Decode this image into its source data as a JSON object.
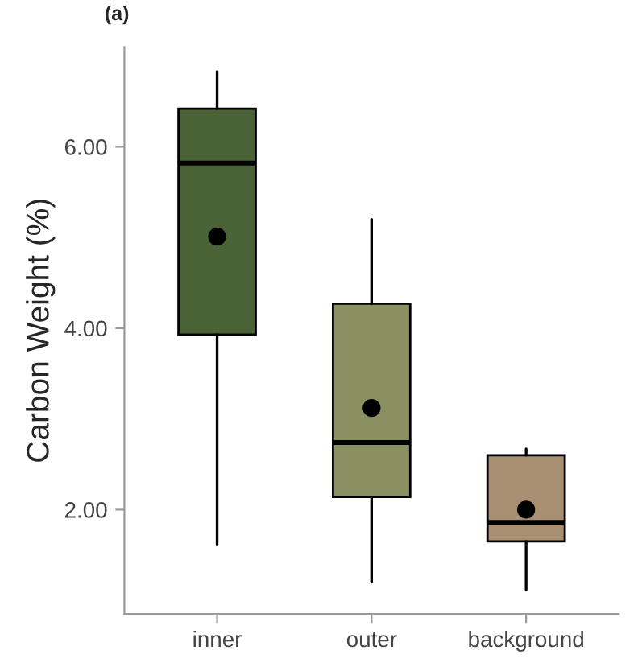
{
  "chart_data": {
    "type": "box",
    "title": "(a)",
    "ylabel": "Carbon Weight (%)",
    "categories": [
      "inner",
      "outer",
      "background"
    ],
    "boxes": [
      {
        "low": 1.61,
        "q1": 3.93,
        "median": 5.82,
        "q3": 6.42,
        "high": 6.83,
        "mean": 5.01
      },
      {
        "low": 1.2,
        "q1": 2.14,
        "median": 2.74,
        "q3": 4.27,
        "high": 5.2,
        "mean": 3.12
      },
      {
        "low": 1.12,
        "q1": 1.65,
        "median": 1.86,
        "q3": 2.6,
        "high": 2.67,
        "mean": 2.0
      }
    ],
    "colors": [
      "#4a6336",
      "#8a9060",
      "#a88f72"
    ],
    "ylim": [
      0.85,
      7.1
    ],
    "yticks": [
      {
        "value": 2,
        "label": "2.00"
      },
      {
        "value": 4,
        "label": "4.00"
      },
      {
        "value": 6,
        "label": "6.00"
      }
    ],
    "grid": false,
    "legend": false
  }
}
